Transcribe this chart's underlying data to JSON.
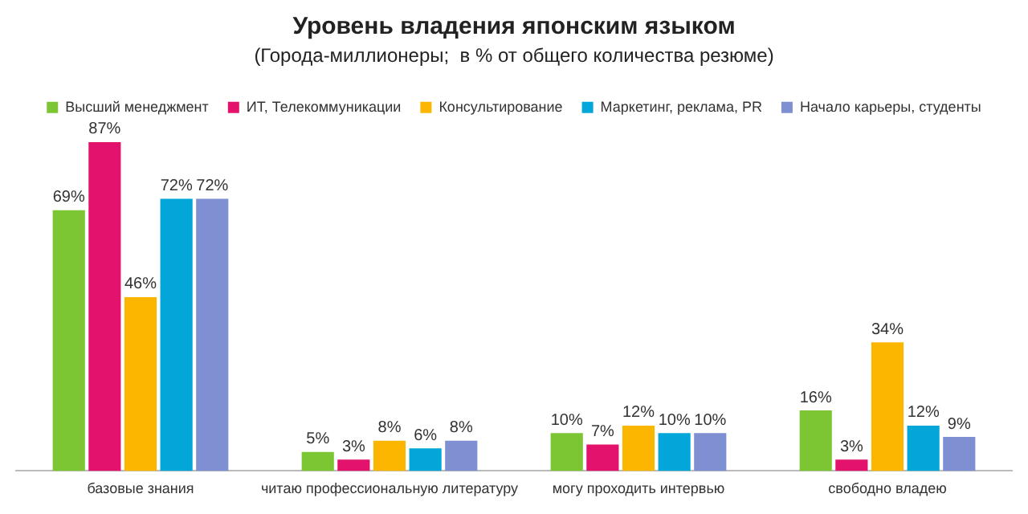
{
  "chart_data": {
    "type": "bar",
    "title": "Уровень владения японским языком",
    "subtitle": "(Города-миллионеры;  в % от общего количества резюме)",
    "categories": [
      "базовые знания",
      "читаю профессиональную литературу",
      "могу проходить интервью",
      "свободно владею"
    ],
    "series": [
      {
        "name": "Высший менеджмент",
        "color": "#7dc633",
        "values": [
          69,
          5,
          10,
          16
        ],
        "value_labels": [
          "69%",
          "5%",
          "10%",
          "16%"
        ]
      },
      {
        "name": "ИТ, Телекоммуникации",
        "color": "#e2126d",
        "values": [
          87,
          3,
          7,
          3
        ],
        "value_labels": [
          "87%",
          "3%",
          "7%",
          "3%"
        ]
      },
      {
        "name": "Консультирование",
        "color": "#fdb600",
        "values": [
          46,
          8,
          12,
          34
        ],
        "value_labels": [
          "46%",
          "8%",
          "12%",
          "34%"
        ]
      },
      {
        "name": "Маркетинг, реклама, PR",
        "color": "#03a6d8",
        "values": [
          72,
          6,
          10,
          12
        ],
        "value_labels": [
          "72%",
          "6%",
          "10%",
          "12%"
        ]
      },
      {
        "name": "Начало карьеры, студенты",
        "color": "#7e8fd2",
        "values": [
          72,
          8,
          10,
          9
        ],
        "value_labels": [
          "72%",
          "8%",
          "10%",
          "9%"
        ]
      }
    ],
    "legend": "top",
    "grid": false
  }
}
